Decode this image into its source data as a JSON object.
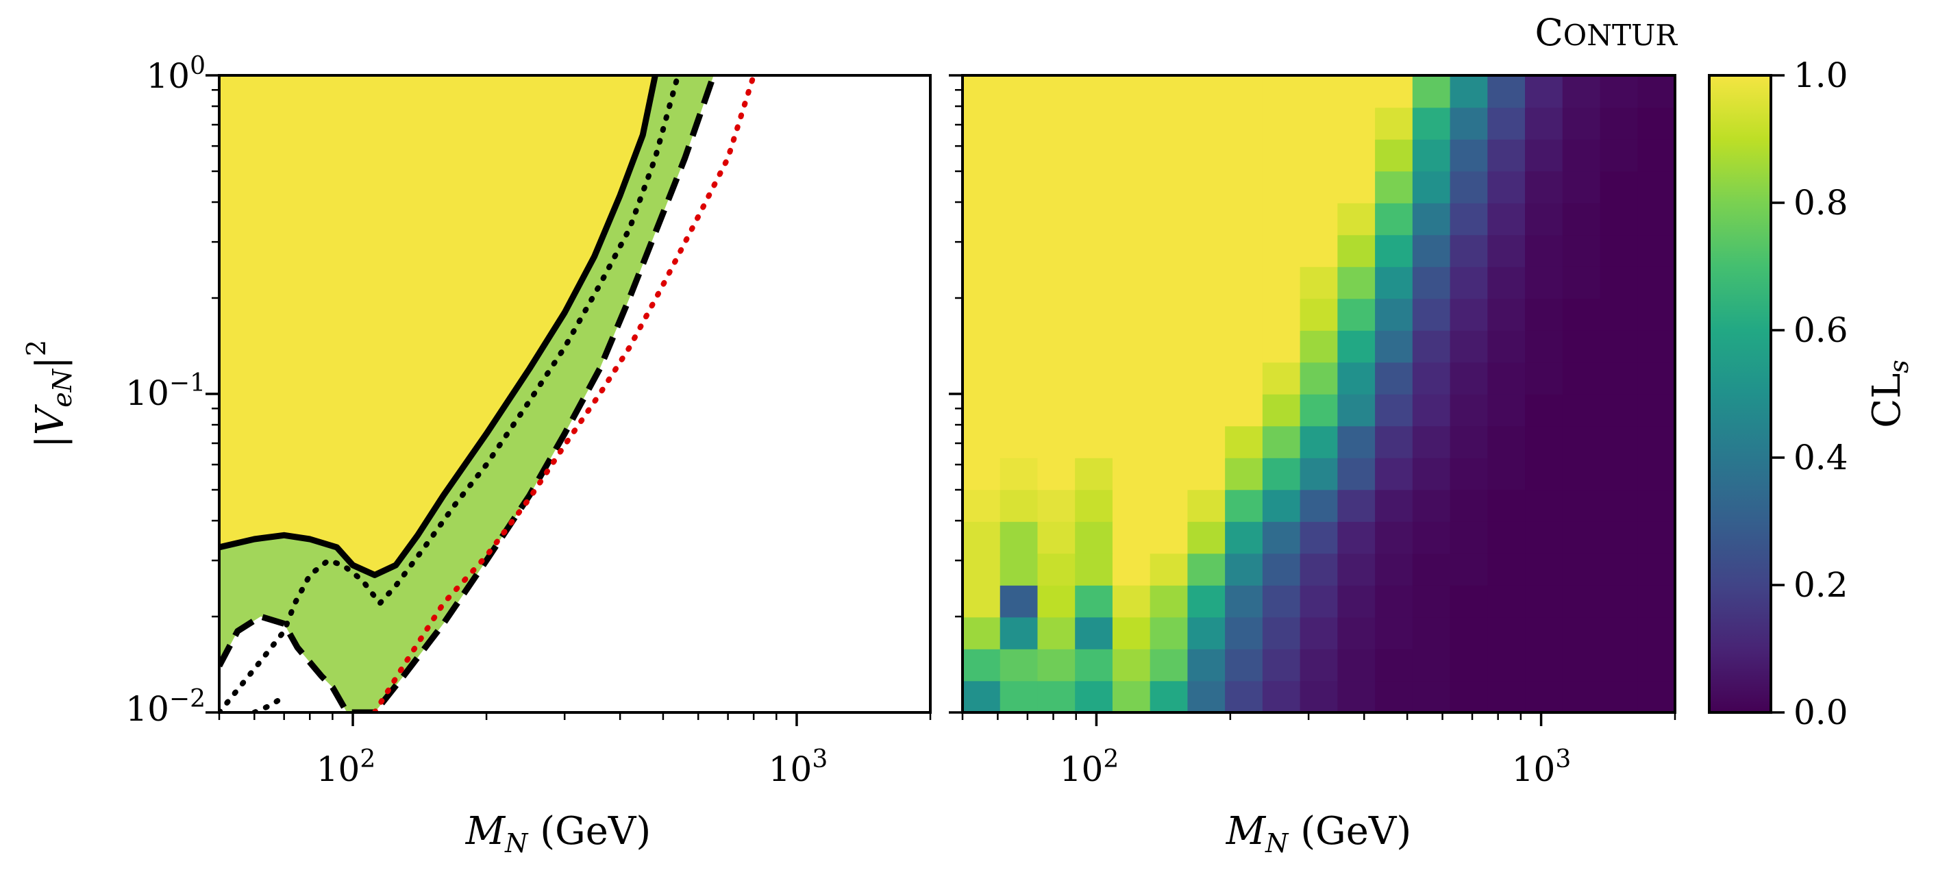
{
  "figure": {
    "brand_label": "Contur"
  },
  "chart_data": [
    {
      "type": "area",
      "panel": "left",
      "xlabel": "M_N (GeV)",
      "ylabel": "|V_eN|^2",
      "x_scale": "log",
      "y_scale": "log",
      "xlim": [
        50,
        2000
      ],
      "ylim": [
        0.01,
        1.0
      ],
      "x_major_ticks": [
        100,
        1000
      ],
      "x_tick_labels": [
        "10^2",
        "10^3"
      ],
      "y_major_ticks": [
        0.01,
        0.1,
        1.0
      ],
      "y_tick_labels": [
        "10^-2",
        "10^-1",
        "10^0"
      ],
      "regions": [
        {
          "name": "excluded_95",
          "color": "#f4e542",
          "boundary": [
            [
              50,
              0.033
            ],
            [
              60,
              0.035
            ],
            [
              70,
              0.036
            ],
            [
              80,
              0.035
            ],
            [
              92,
              0.033
            ],
            [
              100,
              0.029
            ],
            [
              112,
              0.027
            ],
            [
              125,
              0.029
            ],
            [
              140,
              0.036
            ],
            [
              160,
              0.048
            ],
            [
              200,
              0.075
            ],
            [
              250,
              0.12
            ],
            [
              300,
              0.18
            ],
            [
              350,
              0.27
            ],
            [
              400,
              0.42
            ],
            [
              450,
              0.65
            ],
            [
              480,
              1.0
            ]
          ]
        },
        {
          "name": "excluded_68",
          "color": "#a2d65a",
          "boundary": [
            [
              50,
              0.014
            ],
            [
              55,
              0.018
            ],
            [
              62,
              0.02
            ],
            [
              70,
              0.019
            ],
            [
              75,
              0.016
            ],
            [
              85,
              0.013
            ],
            [
              90,
              0.012
            ],
            [
              97,
              0.01
            ],
            [
              112,
              0.01
            ],
            [
              130,
              0.013
            ],
            [
              160,
              0.019
            ],
            [
              200,
              0.03
            ],
            [
              250,
              0.048
            ],
            [
              300,
              0.075
            ],
            [
              360,
              0.12
            ],
            [
              420,
              0.2
            ],
            [
              480,
              0.32
            ],
            [
              560,
              0.55
            ],
            [
              650,
              1.0
            ]
          ]
        }
      ],
      "lines": [
        {
          "name": "solid_95",
          "style": "solid",
          "color": "#000000",
          "x": [
            50,
            60,
            70,
            80,
            92,
            100,
            112,
            125,
            140,
            160,
            200,
            250,
            300,
            350,
            400,
            450,
            480
          ],
          "y": [
            0.033,
            0.035,
            0.036,
            0.035,
            0.033,
            0.029,
            0.027,
            0.029,
            0.036,
            0.048,
            0.075,
            0.12,
            0.18,
            0.27,
            0.42,
            0.65,
            1.0
          ]
        },
        {
          "name": "dashed_68",
          "style": "dashed",
          "color": "#000000",
          "x": [
            50,
            55,
            62,
            70,
            75,
            85,
            90,
            97,
            112,
            130,
            160,
            200,
            250,
            300,
            360,
            420,
            480,
            560,
            650
          ],
          "y": [
            0.014,
            0.018,
            0.02,
            0.019,
            0.016,
            0.013,
            0.012,
            0.01,
            0.01,
            0.013,
            0.019,
            0.03,
            0.048,
            0.075,
            0.12,
            0.2,
            0.32,
            0.55,
            1.0
          ]
        },
        {
          "name": "dotted_expected",
          "style": "dotted",
          "color": "#000000",
          "x": [
            50,
            62,
            70,
            74,
            80,
            88,
            95,
            105,
            115,
            125,
            145,
            170,
            200,
            250,
            300,
            360,
            420,
            480,
            540
          ],
          "y": [
            0.01,
            0.0145,
            0.018,
            0.022,
            0.027,
            0.03,
            0.029,
            0.026,
            0.022,
            0.025,
            0.033,
            0.045,
            0.06,
            0.095,
            0.14,
            0.22,
            0.33,
            0.55,
            1.0
          ]
        },
        {
          "name": "dotted_left_segment",
          "style": "dotted",
          "color": "#000000",
          "x": [
            60,
            65,
            70
          ],
          "y": [
            0.01,
            0.0105,
            0.0112
          ]
        },
        {
          "name": "red_dotted_reference",
          "style": "dotted",
          "color": "#dd0000",
          "x": [
            112,
            130,
            160,
            200,
            250,
            300,
            360,
            420,
            500,
            600,
            700,
            800
          ],
          "y": [
            0.01,
            0.014,
            0.022,
            0.031,
            0.047,
            0.069,
            0.1,
            0.14,
            0.22,
            0.36,
            0.55,
            1.0
          ]
        }
      ]
    },
    {
      "type": "heatmap",
      "panel": "right",
      "title": "Contur",
      "xlabel": "M_N (GeV)",
      "x_scale": "log",
      "y_scale": "log",
      "xlim": [
        50,
        2000
      ],
      "ylim": [
        0.01,
        1.0
      ],
      "x_major_ticks": [
        100,
        1000
      ],
      "x_tick_labels": [
        "10^2",
        "10^3"
      ],
      "colormap": "viridis",
      "colorbar": {
        "label": "CL_s",
        "range": [
          0.0,
          1.0
        ],
        "ticks": [
          0.0,
          0.2,
          0.4,
          0.6,
          0.8,
          1.0
        ],
        "tick_labels": [
          "0.0",
          "0.2",
          "0.4",
          "0.6",
          "0.8",
          "1.0"
        ]
      },
      "grid_cols": 19,
      "grid_rows": 20,
      "row_order": "bottom_to_top",
      "values": [
        [
          0.5,
          0.7,
          0.7,
          0.6,
          0.8,
          0.6,
          0.35,
          0.2,
          0.12,
          0.06,
          0.03,
          0.01,
          0.01,
          0.0,
          0.0,
          0.0,
          0.0,
          0.0,
          0.0
        ],
        [
          0.7,
          0.75,
          0.78,
          0.7,
          0.85,
          0.75,
          0.4,
          0.25,
          0.15,
          0.07,
          0.03,
          0.01,
          0.01,
          0.0,
          0.0,
          0.0,
          0.0,
          0.0,
          0.0
        ],
        [
          0.85,
          0.5,
          0.85,
          0.5,
          0.9,
          0.8,
          0.5,
          0.3,
          0.18,
          0.09,
          0.04,
          0.02,
          0.01,
          0.0,
          0.0,
          0.0,
          0.0,
          0.0,
          0.0
        ],
        [
          0.95,
          0.3,
          0.9,
          0.7,
          0.95,
          0.85,
          0.6,
          0.35,
          0.22,
          0.12,
          0.05,
          0.02,
          0.01,
          0.0,
          0.0,
          0.0,
          0.0,
          0.0,
          0.0
        ],
        [
          0.95,
          0.85,
          0.92,
          0.88,
          1.0,
          0.95,
          0.75,
          0.45,
          0.28,
          0.15,
          0.07,
          0.03,
          0.01,
          0.01,
          0.0,
          0.0,
          0.0,
          0.0,
          0.0
        ],
        [
          0.95,
          0.85,
          0.95,
          0.88,
          1.0,
          1.0,
          0.88,
          0.55,
          0.35,
          0.2,
          0.09,
          0.04,
          0.02,
          0.01,
          0.0,
          0.0,
          0.0,
          0.0,
          0.0
        ],
        [
          0.98,
          0.95,
          0.97,
          0.92,
          1.0,
          1.0,
          0.95,
          0.7,
          0.5,
          0.3,
          0.15,
          0.06,
          0.03,
          0.01,
          0.0,
          0.0,
          0.0,
          0.0,
          0.0
        ],
        [
          1.0,
          0.98,
          1.0,
          0.95,
          1.0,
          1.0,
          1.0,
          0.85,
          0.65,
          0.45,
          0.25,
          0.1,
          0.05,
          0.02,
          0.01,
          0.0,
          0.0,
          0.0,
          0.0
        ],
        [
          1.0,
          1.0,
          1.0,
          1.0,
          1.0,
          1.0,
          1.0,
          0.92,
          0.78,
          0.55,
          0.3,
          0.14,
          0.07,
          0.03,
          0.01,
          0.0,
          0.0,
          0.0,
          0.0
        ],
        [
          1.0,
          1.0,
          1.0,
          1.0,
          1.0,
          1.0,
          1.0,
          1.0,
          0.88,
          0.7,
          0.45,
          0.2,
          0.1,
          0.04,
          0.02,
          0.0,
          0.0,
          0.0,
          0.0
        ],
        [
          1.0,
          1.0,
          1.0,
          1.0,
          1.0,
          1.0,
          1.0,
          1.0,
          0.95,
          0.78,
          0.5,
          0.25,
          0.12,
          0.05,
          0.02,
          0.01,
          0.0,
          0.0,
          0.0
        ],
        [
          1.0,
          1.0,
          1.0,
          1.0,
          1.0,
          1.0,
          1.0,
          1.0,
          1.0,
          0.85,
          0.6,
          0.35,
          0.15,
          0.07,
          0.03,
          0.01,
          0.0,
          0.0,
          0.0
        ],
        [
          1.0,
          1.0,
          1.0,
          1.0,
          1.0,
          1.0,
          1.0,
          1.0,
          1.0,
          0.92,
          0.7,
          0.42,
          0.2,
          0.09,
          0.04,
          0.01,
          0.0,
          0.0,
          0.0
        ],
        [
          1.0,
          1.0,
          1.0,
          1.0,
          1.0,
          1.0,
          1.0,
          1.0,
          1.0,
          0.95,
          0.8,
          0.5,
          0.25,
          0.12,
          0.05,
          0.02,
          0.01,
          0.0,
          0.0
        ],
        [
          1.0,
          1.0,
          1.0,
          1.0,
          1.0,
          1.0,
          1.0,
          1.0,
          1.0,
          1.0,
          0.88,
          0.6,
          0.32,
          0.15,
          0.07,
          0.02,
          0.01,
          0.0,
          0.0
        ],
        [
          1.0,
          1.0,
          1.0,
          1.0,
          1.0,
          1.0,
          1.0,
          1.0,
          1.0,
          1.0,
          0.95,
          0.7,
          0.4,
          0.2,
          0.09,
          0.03,
          0.01,
          0.0,
          0.0
        ],
        [
          1.0,
          1.0,
          1.0,
          1.0,
          1.0,
          1.0,
          1.0,
          1.0,
          1.0,
          1.0,
          1.0,
          0.8,
          0.5,
          0.25,
          0.12,
          0.04,
          0.02,
          0.0,
          0.0
        ],
        [
          1.0,
          1.0,
          1.0,
          1.0,
          1.0,
          1.0,
          1.0,
          1.0,
          1.0,
          1.0,
          1.0,
          0.88,
          0.55,
          0.3,
          0.15,
          0.06,
          0.02,
          0.01,
          0.0
        ],
        [
          1.0,
          1.0,
          1.0,
          1.0,
          1.0,
          1.0,
          1.0,
          1.0,
          1.0,
          1.0,
          1.0,
          0.95,
          0.62,
          0.38,
          0.2,
          0.08,
          0.03,
          0.01,
          0.0
        ],
        [
          1.0,
          1.0,
          1.0,
          1.0,
          1.0,
          1.0,
          1.0,
          1.0,
          1.0,
          1.0,
          1.0,
          1.0,
          0.75,
          0.48,
          0.25,
          0.1,
          0.04,
          0.02,
          0.01
        ]
      ]
    }
  ]
}
